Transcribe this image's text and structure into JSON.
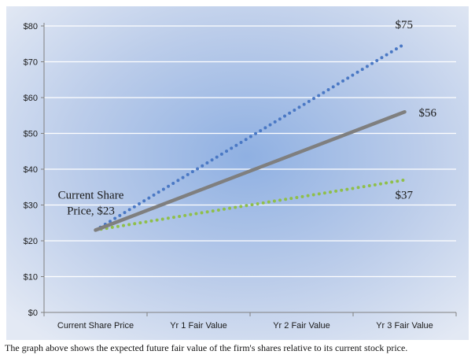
{
  "chart_data": {
    "type": "line",
    "categories": [
      "Current Share Price",
      "Yr 1 Fair Value",
      "Yr 2 Fair Value",
      "Yr 3 Fair Value"
    ],
    "ylim": [
      0,
      80
    ],
    "yticks": [
      0,
      10,
      20,
      30,
      40,
      50,
      60,
      70,
      80
    ],
    "ytick_labels": [
      "$0",
      "$10",
      "$20",
      "$30",
      "$40",
      "$50",
      "$60",
      "$70",
      "$80"
    ],
    "grid": true,
    "series": [
      {
        "values": [
          23,
          40.3,
          57.7,
          75
        ],
        "color": "#4a78c4",
        "style": "dotted"
      },
      {
        "values": [
          23,
          34,
          45,
          56
        ],
        "color": "#7f7f7f",
        "style": "solid"
      },
      {
        "values": [
          23,
          27.7,
          32.3,
          37
        ],
        "color": "#8fbf4a",
        "style": "dotted"
      }
    ],
    "annotations": [
      {
        "lines": [
          "Current Share",
          "Price, $23"
        ]
      },
      {
        "text": "$75"
      },
      {
        "text": "$56"
      },
      {
        "text": "$37"
      }
    ]
  },
  "caption": "The graph above shows the expected future fair value of the firm's shares relative to its current stock price."
}
